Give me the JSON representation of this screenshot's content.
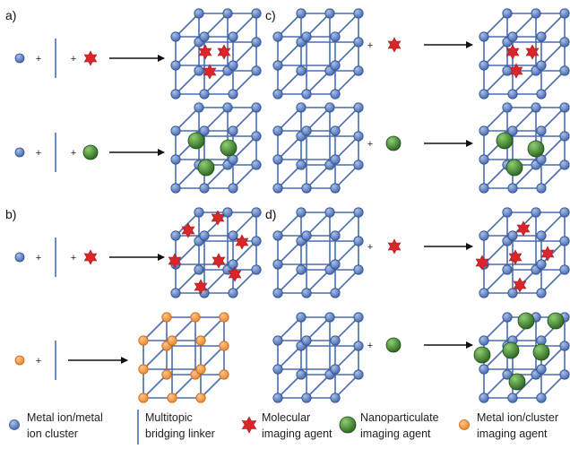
{
  "panels": {
    "a": "a)",
    "b": "b)",
    "c": "c)",
    "d": "d)"
  },
  "plus_sign": "+",
  "colors": {
    "framework": "#4a6db3",
    "metal_node": "#4a6db3",
    "node_highlight": "#a9bfe6",
    "orange_node": "#ef8a2f",
    "orange_highlight": "#fbc48a",
    "star": "#d8262b",
    "sphere": "#2f6b24",
    "sphere_highlight": "#8fcf72",
    "arrow": "#111111"
  },
  "legend": [
    {
      "icon": "blue-node-icon",
      "line1": "Metal ion/metal",
      "line2": "ion cluster"
    },
    {
      "icon": "linker-bar-icon",
      "line1": "Multitopic",
      "line2": "bridging linker"
    },
    {
      "icon": "red-star-icon",
      "line1": "Molecular",
      "line2": "imaging agent"
    },
    {
      "icon": "green-sphere-icon",
      "line1": "Nanoparticulate",
      "line2": "imaging agent"
    },
    {
      "icon": "orange-node-icon",
      "line1": "Metal ion/cluster",
      "line2": "imaging agent"
    }
  ]
}
